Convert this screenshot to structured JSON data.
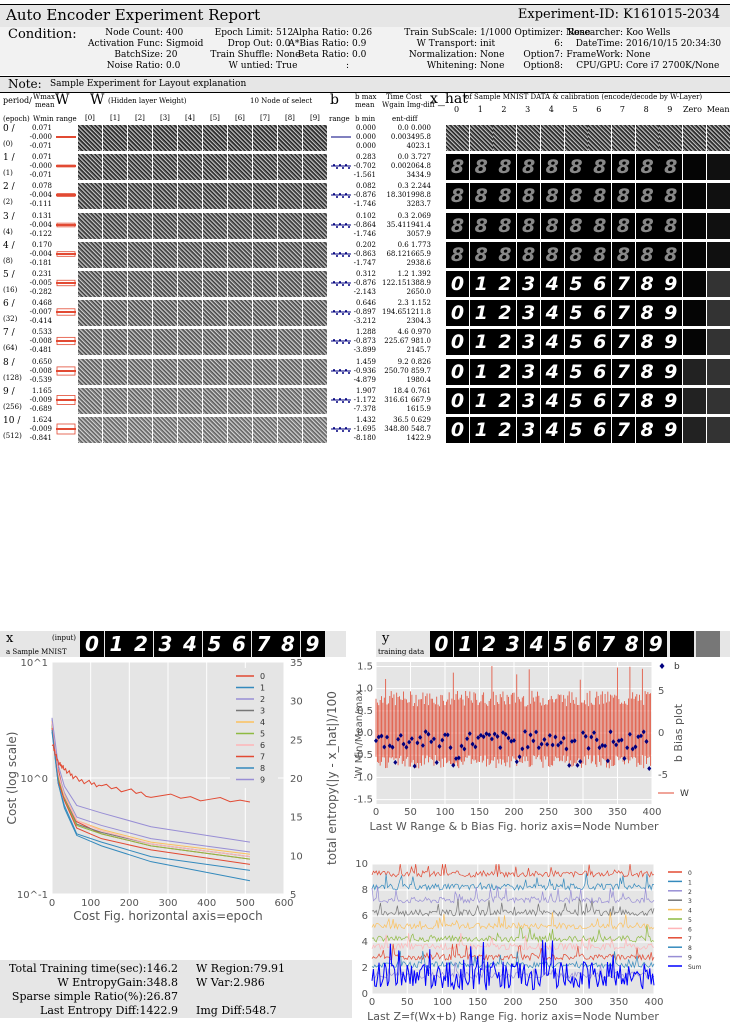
{
  "header": {
    "title": "Auto Encoder Experiment Report",
    "experiment_id": "Experiment-ID: K161015-2034"
  },
  "condition": {
    "label": "Condition:",
    "col1": [
      [
        "Node Count:",
        "400"
      ],
      [
        "Activation Func:",
        "Sigmoid"
      ],
      [
        "BatchSize:",
        "20"
      ],
      [
        "Noise Ratio:",
        "0.0"
      ]
    ],
    "col2": [
      [
        "Epoch Limit:",
        "512"
      ],
      [
        "Drop Out:",
        "0.0"
      ],
      [
        "Train Shuffle:",
        "None"
      ],
      [
        "W untied:",
        "True"
      ]
    ],
    "col3": [
      [
        "Alpha Ratio:",
        "0.26"
      ],
      [
        "A*Bias Ratio:",
        "0.9"
      ],
      [
        "Beta Ratio:",
        "0.0"
      ],
      [
        ":",
        ""
      ]
    ],
    "col4": [
      [
        "Train SubScale:",
        "1/1000"
      ],
      [
        "W Transport:",
        "init"
      ],
      [
        "Normalization:",
        "None"
      ],
      [
        "Whitening:",
        "None"
      ]
    ],
    "col5": [
      [
        "Optimizer:",
        "None"
      ],
      [
        "6:",
        ""
      ],
      [
        "Option7:",
        ""
      ],
      [
        "Option8:",
        ""
      ]
    ],
    "col6": [
      [
        "Researcher:",
        "Koo Wells"
      ],
      [
        "DateTime:",
        "2016/10/15 20:34:30"
      ],
      [
        "FrameWork:",
        "None"
      ],
      [
        "CPU/GPU:",
        "Core i7 2700K/None"
      ]
    ]
  },
  "note": {
    "label": "Note:",
    "text": "Sample Experiment for Layout explanation"
  },
  "table_header": {
    "period": "period/",
    "epoch": "(epoch)",
    "wmax": "Wmax",
    "mean": "mean",
    "wmin": "Wmin",
    "w_big": "W",
    "range": "range",
    "w_title": "W",
    "w_sub": "(Hidden layer Weight)",
    "ten_node": "10 Node of select",
    "w_cols": [
      "[0]",
      "[1]",
      "[2]",
      "[3]",
      "[4]",
      "[5]",
      "[6]",
      "[7]",
      "[8]",
      "[9]"
    ],
    "b_big": "b",
    "b_range": "range",
    "bmax": "b max",
    "bmean": "mean",
    "bmin": "b min",
    "time_cost": "Time Cost",
    "wgain": "Wgain Img-diff",
    "entdiff": "ent-diff",
    "xhat": "x_hat",
    "xhat_sub": "of Sample MNIST DATA & calibration (encode/decode by W-Layer)",
    "x_cols": [
      "0",
      "1",
      "2",
      "3",
      "4",
      "5",
      "6",
      "7",
      "8",
      "9",
      "Zero",
      "Mean"
    ]
  },
  "rows": [
    {
      "period": "0 /",
      "epoch": "(0)",
      "w": [
        "0.071",
        "-0.000",
        "-0.071"
      ],
      "b": [
        "0.000",
        "0.000",
        "0.000"
      ],
      "t": [
        "0.0",
        "0.003495.8",
        "4023.1"
      ],
      "tc": "0.000"
    },
    {
      "period": "1 /",
      "epoch": "(1)",
      "w": [
        "0.071",
        "-0.000",
        "-0.071"
      ],
      "b": [
        "0.283",
        "-0.702",
        "-1.561"
      ],
      "t": [
        "0.0",
        "0.002064.8",
        "3434.9"
      ],
      "tc": "3.727"
    },
    {
      "period": "2 /",
      "epoch": "(2)",
      "w": [
        "0.078",
        "-0.004",
        "-0.111"
      ],
      "b": [
        "0.082",
        "-0.876",
        "-1.746"
      ],
      "t": [
        "0.3",
        "18.301998.8",
        "3283.7"
      ],
      "tc": "2.244"
    },
    {
      "period": "3 /",
      "epoch": "(4)",
      "w": [
        "0.131",
        "-0.004",
        "-0.122"
      ],
      "b": [
        "0.102",
        "-0.864",
        "-1.746"
      ],
      "t": [
        "0.3",
        "35.411941.4",
        "3057.9"
      ],
      "tc": "2.069"
    },
    {
      "period": "4 /",
      "epoch": "(8)",
      "w": [
        "0.170",
        "-0.004",
        "-0.181"
      ],
      "b": [
        "0.202",
        "-0.863",
        "-1.747"
      ],
      "t": [
        "0.6",
        "68.121665.9",
        "2938.6"
      ],
      "tc": "1.773"
    },
    {
      "period": "5 /",
      "epoch": "(16)",
      "w": [
        "0.231",
        "-0.005",
        "-0.282"
      ],
      "b": [
        "0.312",
        "-0.876",
        "-2.143"
      ],
      "t": [
        "1.2",
        "122.151388.9",
        "2650.0"
      ],
      "tc": "1.392"
    },
    {
      "period": "6 /",
      "epoch": "(32)",
      "w": [
        "0.468",
        "-0.007",
        "-0.414"
      ],
      "b": [
        "0.646",
        "-0.897",
        "-3.212"
      ],
      "t": [
        "2.3",
        "194.651211.8",
        "2304.3"
      ],
      "tc": "1.152"
    },
    {
      "period": "7 /",
      "epoch": "(64)",
      "w": [
        "0.533",
        "-0.008",
        "-0.481"
      ],
      "b": [
        "1.288",
        "-0.873",
        "-3.899"
      ],
      "t": [
        "4.6",
        "225.67 981.0",
        "2145.7"
      ],
      "tc": "0.970"
    },
    {
      "period": "8 /",
      "epoch": "(128)",
      "w": [
        "0.650",
        "-0.008",
        "-0.539"
      ],
      "b": [
        "1.459",
        "-0.936",
        "-4.879"
      ],
      "t": [
        "9.2",
        "250.70 859.7",
        "1980.4"
      ],
      "tc": "0.826"
    },
    {
      "period": "9 /",
      "epoch": "(256)",
      "w": [
        "1.165",
        "-0.009",
        "-0.689"
      ],
      "b": [
        "1.907",
        "-1.172",
        "-7.378"
      ],
      "t": [
        "18.4",
        "316.61 667.9",
        "1615.9"
      ],
      "tc": "0.761"
    },
    {
      "period": "10 /",
      "epoch": "(512)",
      "w": [
        "1.624",
        "-0.009",
        "-0.841"
      ],
      "b": [
        "1.432",
        "-1.695",
        "-8.180"
      ],
      "t": [
        "36.5",
        "348.80 548.7",
        "1422.9"
      ],
      "tc": "0.629"
    }
  ],
  "digits": [
    "0",
    "1",
    "2",
    "3",
    "4",
    "5",
    "6",
    "7",
    "8",
    "9"
  ],
  "input_row": {
    "x": "x",
    "input": "(input)",
    "sample": "a Sample MNIST",
    "y": "y",
    "training": "training data"
  },
  "colors": {
    "accent_red": "#e24a33",
    "bias_blue": "#00007f",
    "bg_panel": "#e5e5e5"
  },
  "chart_data": [
    {
      "type": "line",
      "title": "",
      "xlabel": "Cost Fig.  horizontal axis=epoch",
      "ylabel": "Cost  (log scale)",
      "y2label": "total entropy(|y - x_hat|)/100",
      "yscale": "log",
      "ylim": [
        0.1,
        10
      ],
      "y2lim": [
        5,
        35
      ],
      "xlim": [
        0,
        600
      ],
      "x_ticks": [
        "0",
        "100",
        "200",
        "300",
        "400",
        "500",
        "600"
      ],
      "y_ticks": [
        "10^-1",
        "10^0",
        "10^1"
      ],
      "y2_ticks": [
        "5",
        "10",
        "15",
        "20",
        "25",
        "30",
        "35"
      ],
      "legend": "top-right",
      "x": [
        0,
        16,
        32,
        64,
        128,
        256,
        512
      ],
      "series": [
        {
          "name": "0",
          "color": "#e24a33",
          "values": [
            3.0,
            1.2,
            0.7,
            0.42,
            0.33,
            0.26,
            0.2
          ]
        },
        {
          "name": "1",
          "color": "#348abd",
          "values": [
            2.5,
            0.9,
            0.55,
            0.32,
            0.26,
            0.19,
            0.13
          ]
        },
        {
          "name": "2",
          "color": "#988ed5",
          "values": [
            3.2,
            1.1,
            0.75,
            0.46,
            0.39,
            0.3,
            0.23
          ]
        },
        {
          "name": "3",
          "color": "#777777",
          "values": [
            2.9,
            1.0,
            0.68,
            0.4,
            0.34,
            0.27,
            0.21
          ]
        },
        {
          "name": "4",
          "color": "#fbc15e",
          "values": [
            3.1,
            1.05,
            0.72,
            0.43,
            0.36,
            0.28,
            0.22
          ]
        },
        {
          "name": "5",
          "color": "#8eba42",
          "values": [
            2.8,
            1.0,
            0.66,
            0.39,
            0.33,
            0.26,
            0.2
          ]
        },
        {
          "name": "6",
          "color": "#ffb5b8",
          "values": [
            3.0,
            1.1,
            0.7,
            0.43,
            0.35,
            0.27,
            0.21
          ]
        },
        {
          "name": "7",
          "color": "#e24a33",
          "values": [
            2.7,
            0.95,
            0.64,
            0.37,
            0.3,
            0.24,
            0.18
          ]
        },
        {
          "name": "8",
          "color": "#348abd",
          "values": [
            2.6,
            0.9,
            0.58,
            0.33,
            0.28,
            0.21,
            0.16
          ]
        },
        {
          "name": "9",
          "color": "#988ed5",
          "values": [
            3.3,
            1.3,
            0.85,
            0.58,
            0.5,
            0.38,
            0.28
          ]
        }
      ],
      "entropy": {
        "color": "#e24a33",
        "x": [
          0,
          16,
          32,
          64,
          128,
          256,
          512
        ],
        "values": [
          24.5,
          22.0,
          21.2,
          19.8,
          19.0,
          17.8,
          16.9
        ]
      }
    },
    {
      "type": "scatter",
      "title": "",
      "xlabel": "Last W Range & b Bias Fig.  horiz axis=Node Number",
      "ylabel": "W Min/Mean/max",
      "y2label": "b Bias plot",
      "xlim": [
        0,
        400
      ],
      "ylim": [
        -1.6,
        1.6
      ],
      "y2lim": [
        -8.5,
        8.5
      ],
      "x_ticks": [
        "0",
        "50",
        "100",
        "150",
        "200",
        "250",
        "300",
        "350",
        "400"
      ],
      "y_ticks": [
        "-1.5",
        "-1.0",
        "-0.5",
        "0.0",
        "0.5",
        "1.0",
        "1.5"
      ],
      "y2_ticks": [
        "-5",
        "0",
        "5"
      ],
      "legend_b": "b",
      "legend_w": "W",
      "w_max_typical": 0.6,
      "w_min_typical": -0.5,
      "b_mean": -0.87
    },
    {
      "type": "line",
      "title": "",
      "xlabel": "Last Z=f(Wx+b) Range Fig.  horiz axis=Node Number",
      "xlim": [
        0,
        400
      ],
      "ylim": [
        0,
        10
      ],
      "x_ticks": [
        "0",
        "50",
        "100",
        "150",
        "200",
        "250",
        "300",
        "350",
        "400"
      ],
      "y_ticks": [
        "0",
        "2",
        "4",
        "6",
        "8",
        "10"
      ],
      "legend": "right",
      "series_names": [
        "0",
        "1",
        "2",
        "3",
        "4",
        "5",
        "6",
        "7",
        "8",
        "9",
        "Sum"
      ],
      "series_colors": [
        "#e24a33",
        "#348abd",
        "#988ed5",
        "#777777",
        "#fbc15e",
        "#8eba42",
        "#ffb5b8",
        "#e24a33",
        "#348abd",
        "#988ed5",
        "#0000ff"
      ],
      "offsets": [
        9,
        8,
        7,
        6,
        5,
        4,
        3.4,
        2.6,
        2,
        1.2,
        1
      ]
    }
  ],
  "summary": [
    [
      "Total Training time(sec):146.2",
      "W Region:79.91"
    ],
    [
      "W EntropyGain:348.8",
      "W Var:2.986"
    ],
    [
      "Sparse simple Ratio(%):26.87",
      ""
    ],
    [
      "Last Entropy Diff:1422.9",
      "Img Diff:548.7"
    ]
  ]
}
